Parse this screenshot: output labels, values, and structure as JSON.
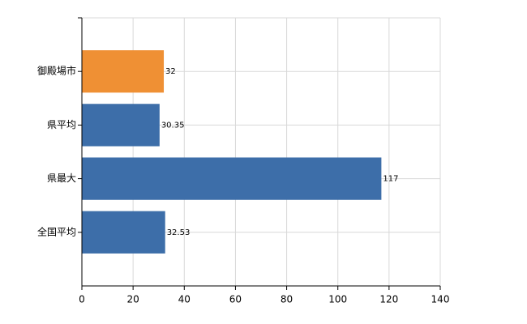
{
  "chart_data": {
    "type": "bar",
    "orientation": "horizontal",
    "categories": [
      "御殿場市",
      "県平均",
      "県最大",
      "全国平均"
    ],
    "values": [
      32,
      30.35,
      117,
      32.53
    ],
    "colors": [
      "#ef9034",
      "#3d6ea9",
      "#3d6ea9",
      "#3d6ea9"
    ],
    "xlim": [
      0,
      140
    ],
    "xticks": [
      0,
      20,
      40,
      60,
      80,
      100,
      120,
      140
    ],
    "grid": true,
    "data_labels": true
  }
}
